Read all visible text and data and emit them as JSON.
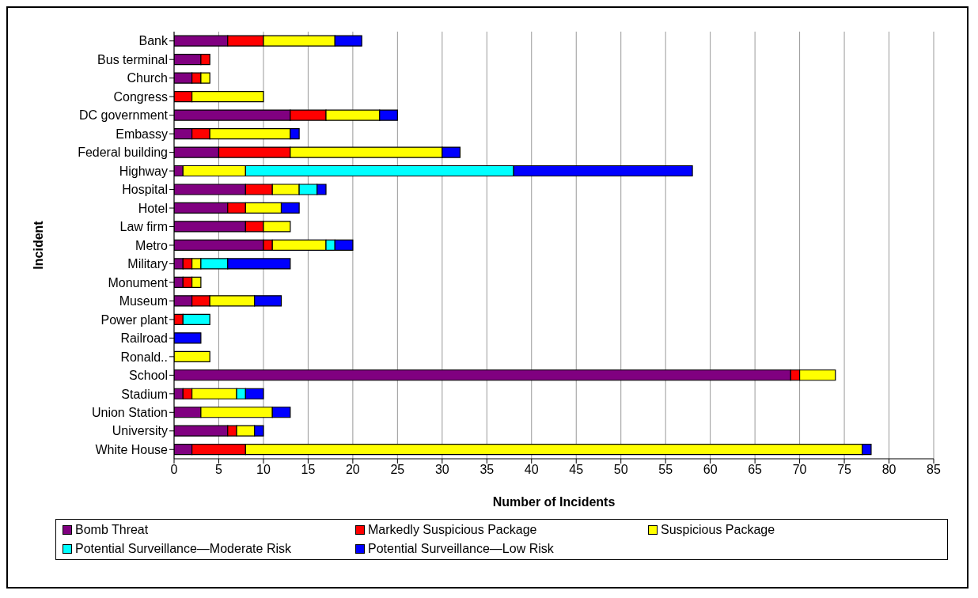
{
  "chart_data": {
    "type": "bar",
    "orientation": "horizontal",
    "stacked": true,
    "xlabel": "Number of Incidents",
    "ylabel": "Incident",
    "categories": [
      "Bank",
      "Bus terminal",
      "Church",
      "Congress",
      "DC government",
      "Embassy",
      "Federal building",
      "Highway",
      "Hospital",
      "Hotel",
      "Law firm",
      "Metro",
      "Military",
      "Monument",
      "Museum",
      "Power plant",
      "Railroad",
      "Ronald..",
      "School",
      "Stadium",
      "Union Station",
      "University",
      "White House"
    ],
    "series": [
      {
        "name": "Bomb Threat",
        "color": "#800080",
        "values": [
          6,
          3,
          2,
          0,
          13,
          2,
          5,
          1,
          8,
          6,
          8,
          10,
          1,
          1,
          2,
          0,
          0,
          0,
          69,
          1,
          3,
          6,
          2
        ]
      },
      {
        "name": "Markedly Suspicious Package",
        "color": "#ff0000",
        "values": [
          4,
          1,
          1,
          2,
          4,
          2,
          8,
          0,
          3,
          2,
          2,
          1,
          1,
          1,
          2,
          1,
          0,
          0,
          1,
          1,
          0,
          1,
          6
        ]
      },
      {
        "name": "Suspicious Package",
        "color": "#ffff00",
        "values": [
          8,
          0,
          1,
          8,
          6,
          9,
          17,
          7,
          3,
          4,
          3,
          6,
          1,
          1,
          5,
          0,
          0,
          4,
          4,
          5,
          8,
          2,
          69
        ]
      },
      {
        "name": "Potential Surveillance—Moderate Risk",
        "color": "#00ffff",
        "values": [
          0,
          0,
          0,
          0,
          0,
          0,
          0,
          30,
          2,
          0,
          0,
          1,
          3,
          0,
          0,
          3,
          0,
          0,
          0,
          1,
          0,
          0,
          0
        ]
      },
      {
        "name": "Potential Surveillance—Low Risk",
        "color": "#0000ff",
        "values": [
          3,
          0,
          0,
          0,
          2,
          1,
          2,
          20,
          1,
          2,
          0,
          2,
          7,
          0,
          3,
          0,
          3,
          0,
          0,
          2,
          2,
          1,
          1
        ]
      }
    ],
    "xlim": [
      0,
      85
    ],
    "xticks": [
      0,
      5,
      10,
      15,
      20,
      25,
      30,
      35,
      40,
      45,
      50,
      55,
      60,
      65,
      70,
      75,
      80,
      85
    ],
    "grid": "x",
    "legend": "bottom"
  }
}
